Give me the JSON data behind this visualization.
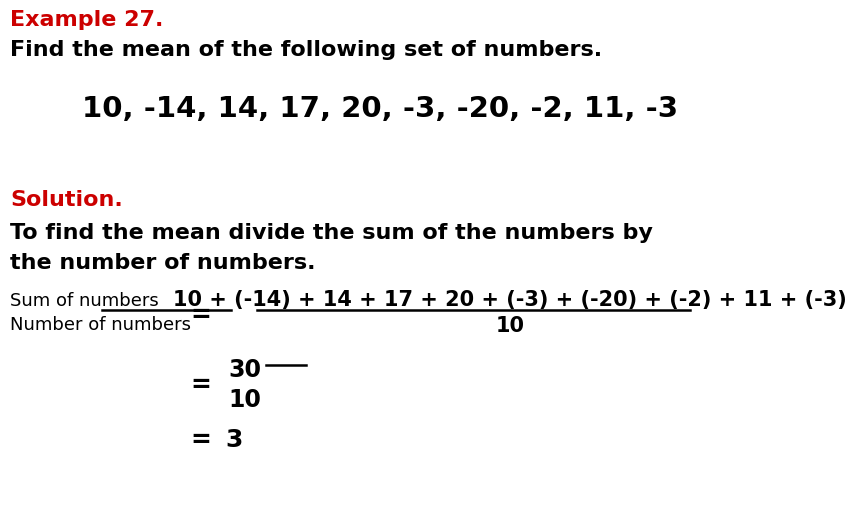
{
  "title_red": "Example 27.",
  "title_black": "Find the mean of the following set of numbers.",
  "numbers_display": "10, -14, 14, 17, 20, -3, -20, -2, 11, -3",
  "solution_red": "Solution.",
  "solution_desc1": "To find the mean divide the sum of the numbers by",
  "solution_desc2": "the number of numbers.",
  "fraction_label_num": "Sum of numbers",
  "fraction_label_den": "Number of numbers",
  "equals1": "=",
  "numerator_expr": "10 + (-14) + 14 + 17 + 20 + (-3) + (-20) + (-2) + 11 + (-3)",
  "denominator_expr": "10",
  "equals2": "=",
  "step2_num": "30",
  "step2_den": "10",
  "equals3": "=",
  "step3_result": "3",
  "bg_color": "#FFFFFF",
  "text_color_black": "#000000",
  "text_color_red": "#CC0000"
}
